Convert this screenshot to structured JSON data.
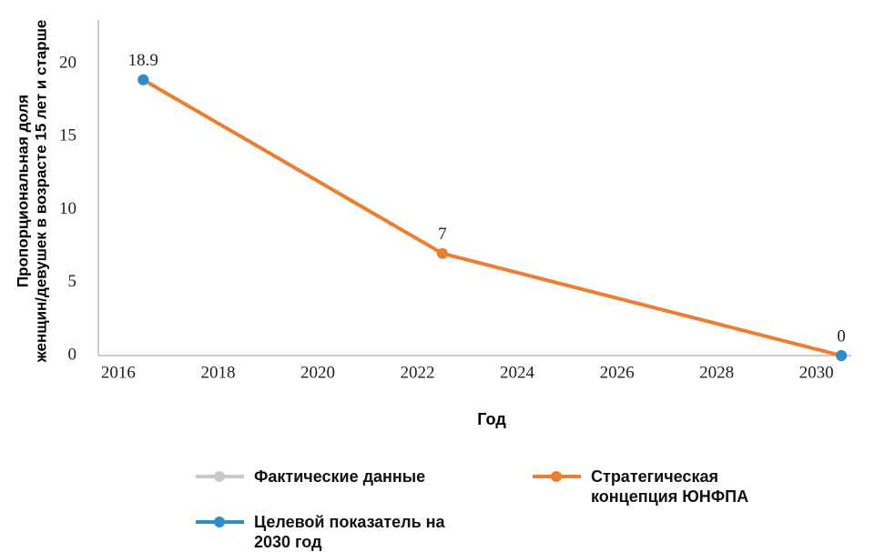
{
  "chart_data": {
    "type": "line",
    "xlabel": "Год",
    "ylabel": [
      "Пропорциональная доля",
      "женщин/девушек в возрасте 15 лет и старше"
    ],
    "x": [
      2016.5,
      2022.5,
      2030.5
    ],
    "series": [
      {
        "name": "Фактические данные",
        "color": "#c9c9c9",
        "values": [
          null,
          null,
          null
        ]
      },
      {
        "name": "Стратегическая концепция ЮНФПА",
        "color": "#ed7d31",
        "values": [
          18.9,
          7,
          0
        ],
        "data_labels": true
      },
      {
        "name": "Целевой показатель на 2030 год",
        "color": "#2e8bcc",
        "values": [
          18.9,
          null,
          0
        ]
      }
    ],
    "xlim": [
      2015.6,
      2030.7
    ],
    "xticks": [
      2016,
      2018,
      2020,
      2022,
      2024,
      2026,
      2028,
      2030
    ],
    "ylim": [
      0,
      23
    ],
    "yticks": [
      0,
      5,
      10,
      15,
      20
    ],
    "grid": false
  }
}
